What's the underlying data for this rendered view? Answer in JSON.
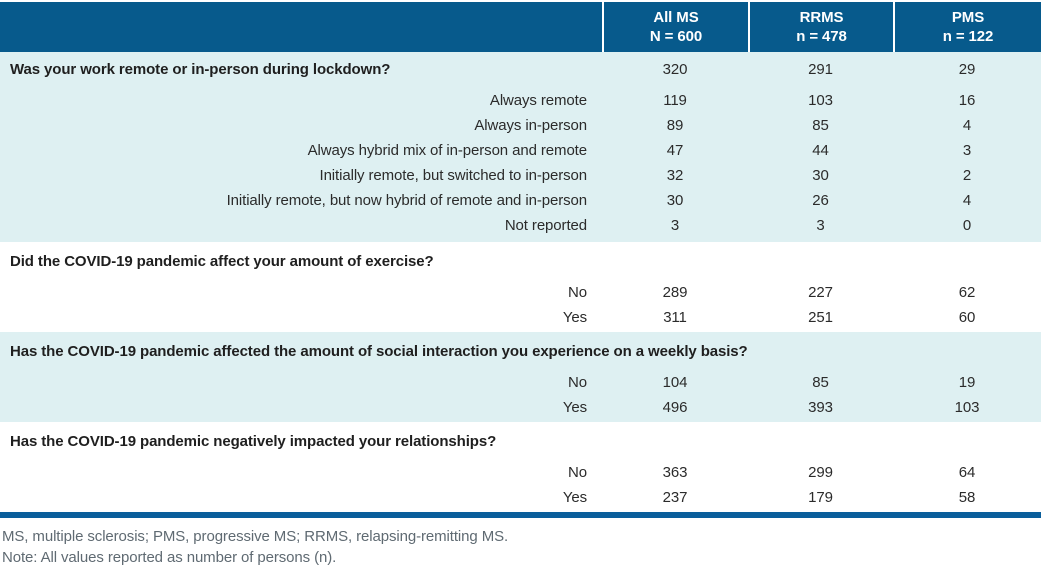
{
  "table": {
    "columns": [
      {
        "line1": "All MS",
        "line2": "N = 600"
      },
      {
        "line1": "RRMS",
        "line2": "n = 478"
      },
      {
        "line1": "PMS",
        "line2": "n = 122"
      }
    ],
    "sections": [
      {
        "question": "Was your work remote or in-person during lockdown?",
        "question_values": [
          "320",
          "291",
          "29"
        ],
        "rows": [
          {
            "label": "Always remote",
            "values": [
              "119",
              "103",
              "16"
            ]
          },
          {
            "label": "Always in-person",
            "values": [
              "89",
              "85",
              "4"
            ]
          },
          {
            "label": "Always hybrid mix of in-person and remote",
            "values": [
              "47",
              "44",
              "3"
            ]
          },
          {
            "label": "Initially remote, but switched to in-person",
            "values": [
              "32",
              "30",
              "2"
            ]
          },
          {
            "label": "Initially remote, but now hybrid of remote and in-person",
            "values": [
              "30",
              "26",
              "4"
            ]
          },
          {
            "label": "Not reported",
            "values": [
              "3",
              "3",
              "0"
            ]
          }
        ]
      },
      {
        "question": "Did the COVID-19 pandemic affect your amount of exercise?",
        "question_values": [
          "",
          "",
          ""
        ],
        "rows": [
          {
            "label": "No",
            "values": [
              "289",
              "227",
              "62"
            ]
          },
          {
            "label": "Yes",
            "values": [
              "311",
              "251",
              "60"
            ]
          }
        ]
      },
      {
        "question": "Has the COVID-19 pandemic affected the amount of social interaction you experience on a weekly basis?",
        "question_values": [
          "",
          "",
          ""
        ],
        "rows": [
          {
            "label": "No",
            "values": [
              "104",
              "85",
              "19"
            ]
          },
          {
            "label": "Yes",
            "values": [
              "496",
              "393",
              "103"
            ]
          }
        ]
      },
      {
        "question": "Has the COVID-19 pandemic negatively impacted your relationships?",
        "question_values": [
          "",
          "",
          ""
        ],
        "rows": [
          {
            "label": "No",
            "values": [
              "363",
              "299",
              "64"
            ]
          },
          {
            "label": "Yes",
            "values": [
              "237",
              "179",
              "58"
            ]
          }
        ]
      }
    ]
  },
  "footnotes": {
    "abbreviations": "MS, multiple sclerosis; PMS, progressive MS; RRMS, relapsing-remitting MS.",
    "note": "Note: All values reported as number of persons (n)."
  },
  "colors": {
    "header_bg": "#075a8c",
    "band_bg": "#def0f2",
    "rule": "#0a5e9b",
    "footnote_text": "#5f6a72"
  }
}
